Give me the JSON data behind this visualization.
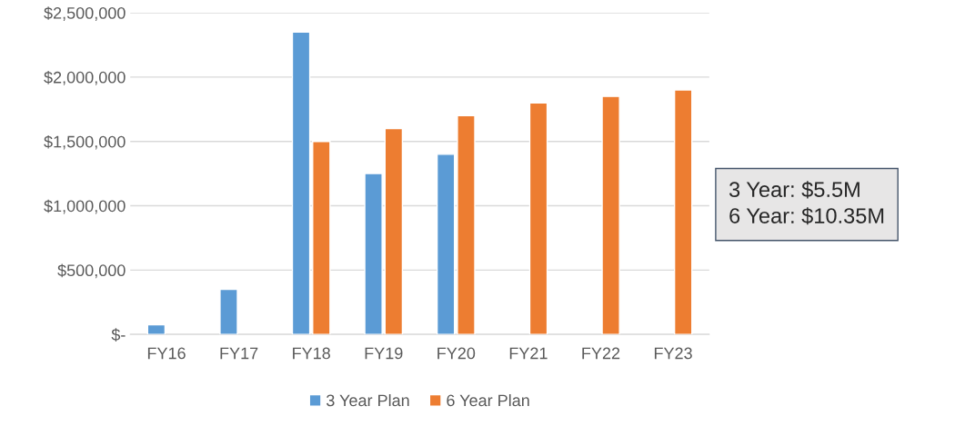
{
  "chart_data": {
    "type": "bar",
    "categories": [
      "FY16",
      "FY17",
      "FY18",
      "FY19",
      "FY20",
      "FY21",
      "FY22",
      "FY23"
    ],
    "series": [
      {
        "name": "3 Year Plan",
        "color": "#5b9bd5",
        "values": [
          75000,
          350000,
          2350000,
          1250000,
          1400000,
          null,
          null,
          null
        ]
      },
      {
        "name": "6 Year Plan",
        "color": "#ed7d31",
        "values": [
          null,
          null,
          1500000,
          1600000,
          1700000,
          1800000,
          1850000,
          1900000
        ]
      }
    ],
    "ylim": [
      0,
      2500000
    ],
    "yticks": [
      {
        "value": 0,
        "label": "$-"
      },
      {
        "value": 500000,
        "label": "$500,000"
      },
      {
        "value": 1000000,
        "label": "$1,000,000"
      },
      {
        "value": 1500000,
        "label": "$1,500,000"
      },
      {
        "value": 2000000,
        "label": "$2,000,000"
      },
      {
        "value": 2500000,
        "label": "$2,500,000"
      }
    ],
    "grid": "y",
    "legend": "bottom",
    "annotations": [
      "3 Year: $5.5M\n6 Year: $10.35M"
    ]
  }
}
